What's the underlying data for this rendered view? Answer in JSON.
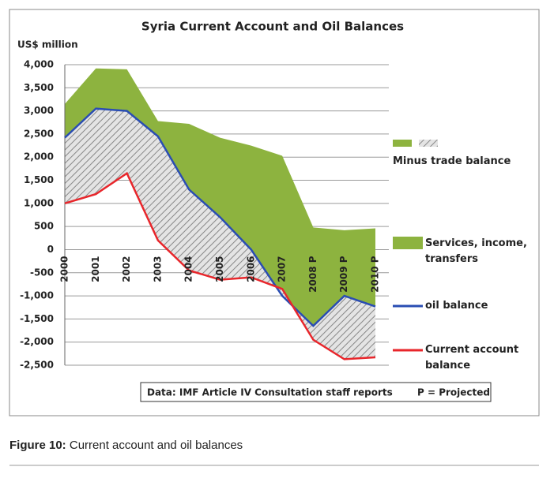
{
  "chart_data": {
    "type": "area-line",
    "title": "Syria Current Account and Oil Balances",
    "y_label": "US$ million",
    "categories": [
      "2000",
      "2001",
      "2002",
      "2003",
      "2004",
      "2005",
      "2006",
      "2007",
      "2008 P",
      "2009 P",
      "2010 P"
    ],
    "series": [
      {
        "name": "Services, income, transfers",
        "color": "#8db33f",
        "values": [
          3150,
          3920,
          3900,
          2780,
          2720,
          2420,
          2250,
          2030,
          480,
          420,
          460
        ]
      },
      {
        "name": "oil balance",
        "color": "#2a4db3",
        "values": [
          2420,
          3050,
          3000,
          2450,
          1300,
          700,
          0,
          -1000,
          -1650,
          -1000,
          -1230
        ]
      },
      {
        "name": "Current account balance",
        "color": "#e8262b",
        "values": [
          1000,
          1200,
          1650,
          200,
          -450,
          -650,
          -600,
          -850,
          -1950,
          -2370,
          -2330
        ]
      }
    ],
    "trade_legend": "Minus trade balance",
    "ylim": [
      -2500,
      4000
    ],
    "yticks": [
      {
        "value": -2500,
        "label": "-2,500"
      },
      {
        "value": -2000,
        "label": "-2,000"
      },
      {
        "value": -1500,
        "label": "-1,500"
      },
      {
        "value": -1000,
        "label": "-1,000"
      },
      -500,
      0,
      500,
      {
        "value": 1000,
        "label": "1,000"
      },
      {
        "value": 1500,
        "label": "1,500"
      },
      {
        "value": 2000,
        "label": "2,000"
      },
      {
        "value": 2500,
        "label": "2,500"
      },
      {
        "value": 3000,
        "label": "3,000"
      },
      {
        "value": 3500,
        "label": "3,500"
      },
      {
        "value": 4000,
        "label": "4,000"
      }
    ],
    "grid": true,
    "note": "Data: IMF Article IV Consultation staff reports",
    "note2": "P = Projected"
  },
  "caption": {
    "label": "Figure 10:",
    "text": "Current account and oil balances"
  }
}
